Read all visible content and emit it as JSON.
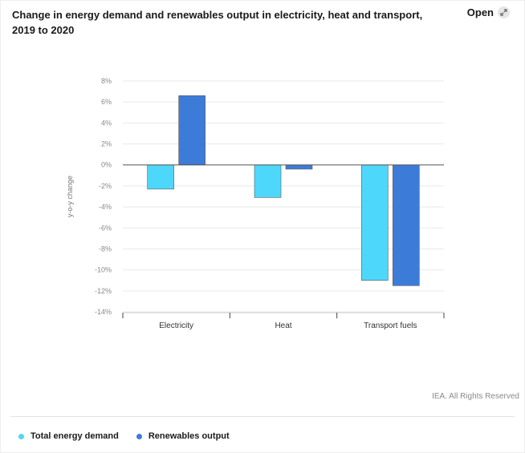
{
  "header": {
    "title": "Change in energy demand and renewables output in electricity, heat and transport, 2019 to 2020",
    "open_label": "Open",
    "open_icon": "expand-icon"
  },
  "footer": {
    "credit": "IEA. All Rights Reserved"
  },
  "colors": {
    "total_energy_demand": "#4dd8fb",
    "renewables_output": "#3d7bd9",
    "grid": "#e9e9e9",
    "zero_line": "#555555"
  },
  "chart_data": {
    "type": "bar",
    "title": "Change in energy demand and renewables output in electricity, heat and transport, 2019 to 2020",
    "xlabel": "",
    "ylabel": "y-o-y change",
    "categories": [
      "Electricity",
      "Heat",
      "Transport fuels"
    ],
    "series": [
      {
        "name": "Total energy demand",
        "values": [
          -2.3,
          -3.1,
          -11.0
        ]
      },
      {
        "name": "Renewables output",
        "values": [
          6.6,
          -0.4,
          -11.5
        ]
      }
    ],
    "ylim": [
      -14,
      8
    ],
    "yticks": [
      8,
      6,
      4,
      2,
      0,
      -2,
      -4,
      -6,
      -8,
      -10,
      -12,
      -14
    ],
    "ytick_labels": [
      "8%",
      "6%",
      "4%",
      "2%",
      "0%",
      "-2%",
      "-4%",
      "-6%",
      "-8%",
      "-10%",
      "-12%",
      "-14%"
    ],
    "grid": true,
    "legend": "bottom-left"
  }
}
